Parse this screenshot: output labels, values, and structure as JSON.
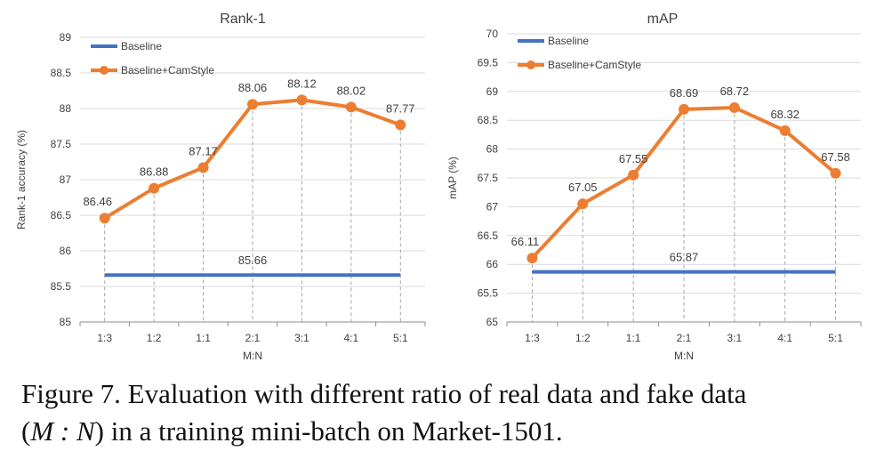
{
  "chart_data": [
    {
      "type": "line",
      "title": "Rank-1",
      "xlabel": "M:N",
      "ylabel": "Rank-1 accuracy (%)",
      "categories": [
        "1:3",
        "1:2",
        "1:1",
        "2:1",
        "3:1",
        "4:1",
        "5:1"
      ],
      "ylim": [
        85,
        89
      ],
      "yticks": [
        "85",
        "85.5",
        "86",
        "86.5",
        "87",
        "87.5",
        "88",
        "88.5",
        "89"
      ],
      "gridlines": true,
      "legend_position": "top-left",
      "series": [
        {
          "name": "Baseline",
          "color": "#4472C4",
          "values": [
            85.66,
            85.66,
            85.66,
            85.66,
            85.66,
            85.66,
            85.66
          ],
          "label": "85.66"
        },
        {
          "name": "Baseline+CamStyle",
          "color": "#ED7D31",
          "values": [
            86.46,
            86.88,
            87.17,
            88.06,
            88.12,
            88.02,
            87.77
          ],
          "labels": [
            "86.46",
            "86.88",
            "87.17",
            "88.06",
            "88.12",
            "88.02",
            "87.77"
          ]
        }
      ]
    },
    {
      "type": "line",
      "title": "mAP",
      "xlabel": "M:N",
      "ylabel": "mAP (%)",
      "categories": [
        "1:3",
        "1:2",
        "1:1",
        "2:1",
        "3:1",
        "4:1",
        "5:1"
      ],
      "ylim": [
        65,
        70
      ],
      "yticks": [
        "65",
        "65.5",
        "66",
        "66.5",
        "67",
        "67.5",
        "68",
        "68.5",
        "69",
        "69.5",
        "70"
      ],
      "gridlines": true,
      "legend_position": "top-left",
      "series": [
        {
          "name": "Baseline",
          "color": "#4472C4",
          "values": [
            65.87,
            65.87,
            65.87,
            65.87,
            65.87,
            65.87,
            65.87
          ],
          "label": "65.87"
        },
        {
          "name": "Baseline+CamStyle",
          "color": "#ED7D31",
          "values": [
            66.11,
            67.05,
            67.55,
            68.69,
            68.72,
            68.32,
            67.58
          ],
          "labels": [
            "66.11",
            "67.05",
            "67.55",
            "68.69",
            "68.72",
            "68.32",
            "67.58"
          ]
        }
      ]
    }
  ],
  "caption": {
    "line1": "Figure 7. Evaluation with different ratio of real data and fake data",
    "line2_open": "(",
    "line2_math": "M : N",
    "line2_rest": ") in a training mini-batch on Market-1501."
  }
}
